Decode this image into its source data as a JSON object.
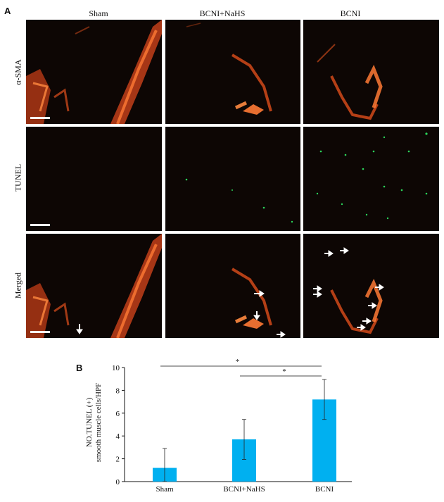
{
  "figure": {
    "panel_a_label": "A",
    "panel_b_label": "B",
    "columns": [
      "Sham",
      "BCNI+NaHS",
      "BCNI"
    ],
    "rows": [
      "α-SMA",
      "TUNEL",
      "Merged"
    ],
    "colors": {
      "sma": "#e0501c",
      "tunel": "#2bd45a",
      "background": "#0d0604",
      "bar": "#00b0f0"
    }
  },
  "chart_data": {
    "type": "bar",
    "categories": [
      "Sham",
      "BCNI+NaHS",
      "BCNI"
    ],
    "values": [
      1.2,
      3.7,
      7.2
    ],
    "errors": [
      1.7,
      1.75,
      1.75
    ],
    "ylabel_line1": "NO.TUNEL (+)",
    "ylabel_line2": "smooth muscle cells/HPF",
    "ylim": [
      0,
      10
    ],
    "yticks": [
      0,
      2,
      4,
      6,
      8,
      10
    ],
    "significance": [
      {
        "from": "Sham",
        "to": "BCNI",
        "label": "*"
      },
      {
        "from": "BCNI+NaHS",
        "to": "BCNI",
        "label": "*"
      }
    ]
  }
}
